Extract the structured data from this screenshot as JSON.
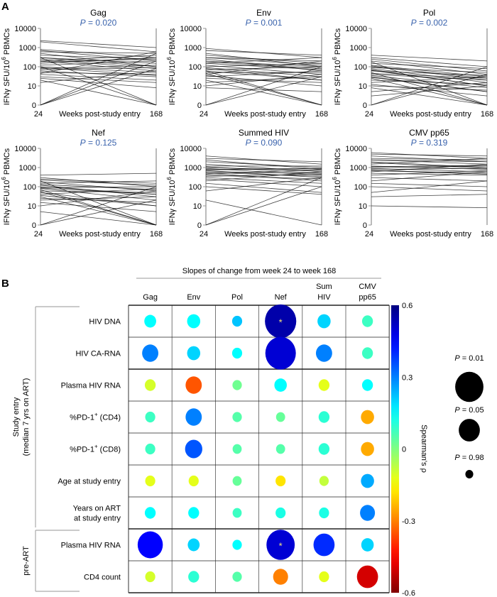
{
  "panel_a": {
    "label": "A"
  },
  "panel_b": {
    "label": "B"
  },
  "chart_data": [
    {
      "type": "line",
      "panel": "A",
      "xlabel": "Weeks post-study entry",
      "x_ticks": [
        "24",
        "168"
      ],
      "ylabel": {
        "prefix": "IFNγ SFU/10",
        "sup": "6",
        "suffix": " PBMCs"
      },
      "y_ticks": [
        "10000",
        "1000",
        "100",
        "10",
        "0"
      ],
      "y_scale": "log (with 0)",
      "ylim": [
        0,
        10000
      ],
      "p_prefix": "P",
      "subplots": [
        {
          "title": "Gag",
          "p": "= 0.020",
          "week24": [
            2300,
            2000,
            800,
            700,
            600,
            500,
            400,
            300,
            300,
            250,
            200,
            200,
            150,
            120,
            100,
            100,
            80,
            70,
            60,
            50,
            45,
            40,
            30,
            25,
            20,
            15,
            0,
            0,
            0,
            300,
            180,
            90
          ],
          "week168": [
            1000,
            600,
            300,
            200,
            500,
            100,
            250,
            150,
            0,
            80,
            400,
            60,
            300,
            200,
            50,
            0,
            120,
            90,
            30,
            40,
            600,
            20,
            15,
            8,
            0,
            60,
            500,
            200,
            80,
            100,
            250,
            35
          ]
        },
        {
          "title": "Env",
          "p": "= 0.001",
          "week24": [
            900,
            700,
            500,
            400,
            300,
            250,
            200,
            180,
            150,
            120,
            100,
            90,
            80,
            70,
            60,
            50,
            40,
            35,
            30,
            25,
            20,
            15,
            10,
            8,
            0,
            0,
            300,
            150,
            60,
            45
          ],
          "week168": [
            300,
            400,
            100,
            150,
            200,
            60,
            100,
            80,
            300,
            40,
            150,
            30,
            20,
            100,
            0,
            50,
            200,
            10,
            60,
            15,
            0,
            30,
            40,
            5,
            100,
            30,
            120,
            70,
            20,
            0
          ]
        },
        {
          "title": "Pol",
          "p": "= 0.002",
          "week24": [
            400,
            300,
            250,
            200,
            150,
            120,
            100,
            90,
            80,
            70,
            60,
            50,
            40,
            35,
            30,
            25,
            20,
            15,
            12,
            10,
            8,
            5,
            3,
            0,
            0,
            180,
            110,
            65,
            45,
            28
          ],
          "week168": [
            200,
            100,
            60,
            40,
            80,
            30,
            25,
            50,
            15,
            10,
            35,
            0,
            20,
            8,
            5,
            0,
            12,
            30,
            3,
            6,
            0,
            15,
            10,
            40,
            100,
            0,
            20,
            10,
            25,
            5
          ]
        },
        {
          "title": "Nef",
          "p": "= 0.125",
          "week24": [
            400,
            300,
            250,
            200,
            180,
            150,
            120,
            100,
            90,
            80,
            70,
            60,
            50,
            40,
            30,
            25,
            20,
            15,
            10,
            0,
            0,
            5,
            220,
            130,
            85,
            55,
            35
          ],
          "week168": [
            500,
            100,
            150,
            0,
            60,
            200,
            30,
            40,
            100,
            20,
            0,
            50,
            10,
            80,
            0,
            15,
            30,
            5,
            60,
            100,
            20,
            0,
            120,
            70,
            40,
            0,
            10
          ]
        },
        {
          "title": "Summed HIV",
          "p": "= 0.090",
          "week24": [
            4000,
            3000,
            2500,
            2000,
            1500,
            1200,
            1000,
            900,
            800,
            700,
            600,
            500,
            450,
            400,
            300,
            250,
            200,
            150,
            100,
            60,
            20,
            0,
            0,
            1100,
            750,
            550,
            350
          ],
          "week168": [
            1500,
            2000,
            800,
            1000,
            600,
            1200,
            700,
            400,
            900,
            300,
            500,
            200,
            800,
            250,
            150,
            100,
            600,
            50,
            40,
            300,
            0,
            300,
            100,
            500,
            900,
            350,
            450
          ]
        },
        {
          "title": "CMV pp65",
          "p": "= 0.319",
          "week24": [
            6000,
            5000,
            4000,
            3000,
            2500,
            2000,
            1500,
            1200,
            1000,
            900,
            800,
            700,
            600,
            500,
            400,
            300,
            200,
            150,
            100,
            50,
            30,
            10,
            2500,
            1800,
            1100,
            700
          ],
          "week168": [
            3000,
            4000,
            2000,
            2500,
            1500,
            1000,
            3000,
            800,
            1200,
            600,
            900,
            500,
            1500,
            400,
            700,
            200,
            600,
            100,
            60,
            200,
            40,
            8,
            2000,
            900,
            1300,
            450
          ]
        }
      ],
      "line_color": "#000000",
      "p_color": "#3a63ad"
    },
    {
      "type": "heatmap",
      "panel": "B",
      "title": "Slopes of change from week 24 to week 168",
      "columns": [
        [
          "Gag"
        ],
        [
          "Env"
        ],
        [
          "Pol"
        ],
        [
          "Nef"
        ],
        [
          "Sum",
          "HIV"
        ],
        [
          "CMV",
          "pp65"
        ]
      ],
      "groups": [
        {
          "label_lines": [
            "Study entry",
            "(median 7 yrs on ART)"
          ],
          "rows": [
            0,
            1,
            2,
            3,
            4,
            5,
            6
          ]
        },
        {
          "label_lines": [
            "pre-ART"
          ],
          "rows": [
            7,
            8
          ]
        }
      ],
      "rows": [
        {
          "label": "HIV DNA",
          "rho": [
            0.15,
            0.15,
            0.22,
            0.55,
            0.2,
            0.08
          ],
          "p": [
            0.4,
            0.3,
            0.6,
            0.005,
            0.3,
            0.5
          ],
          "star": [
            false,
            false,
            false,
            true,
            false,
            false
          ]
        },
        {
          "label": "HIV CA-RNA",
          "rho": [
            0.3,
            0.2,
            0.15,
            0.5,
            0.3,
            0.08
          ],
          "p": [
            0.15,
            0.3,
            0.6,
            0.006,
            0.15,
            0.5
          ],
          "star": [
            false,
            false,
            false,
            false,
            false,
            false
          ]
        },
        {
          "label": "Plasma HIV RNA",
          "rho": [
            -0.1,
            -0.35,
            0.02,
            0.15,
            -0.12,
            0.15
          ],
          "p": [
            0.5,
            0.15,
            0.7,
            0.35,
            0.5,
            0.5
          ],
          "star": [
            false,
            false,
            false,
            false,
            false,
            false
          ]
        },
        {
          "label": "%PD-1",
          "sup": "+",
          "suffix": " (CD4)",
          "rho": [
            0.08,
            0.3,
            0.05,
            0.03,
            0.1,
            -0.25
          ],
          "p": [
            0.6,
            0.15,
            0.7,
            0.75,
            0.5,
            0.3
          ],
          "star": [
            false,
            false,
            false,
            false,
            false,
            false
          ]
        },
        {
          "label": "%PD-1",
          "sup": "+",
          "suffix": " (CD8)",
          "rho": [
            0.08,
            0.35,
            0.05,
            0.05,
            0.1,
            -0.25
          ],
          "p": [
            0.6,
            0.12,
            0.75,
            0.75,
            0.5,
            0.3
          ],
          "star": [
            false,
            false,
            false,
            false,
            false,
            false
          ]
        },
        {
          "label": "Age at study entry",
          "rho": [
            -0.12,
            -0.12,
            0.03,
            -0.18,
            -0.08,
            0.25
          ],
          "p": [
            0.6,
            0.6,
            0.75,
            0.6,
            0.7,
            0.3
          ],
          "star": [
            false,
            false,
            false,
            false,
            false,
            false
          ]
        },
        {
          "label": "Years on ART",
          "label2": "at study entry",
          "rho": [
            0.15,
            0.15,
            0.08,
            0.12,
            0.12,
            0.3
          ],
          "p": [
            0.5,
            0.5,
            0.75,
            0.6,
            0.6,
            0.2
          ],
          "star": [
            false,
            false,
            false,
            false,
            false,
            false
          ]
        },
        {
          "label": "Plasma HIV RNA",
          "rho": [
            0.45,
            0.2,
            0.15,
            0.5,
            0.4,
            0.2
          ],
          "p": [
            0.02,
            0.4,
            0.7,
            0.01,
            0.05,
            0.35
          ],
          "star": [
            false,
            false,
            false,
            true,
            false,
            false
          ]
        },
        {
          "label": "CD4 count",
          "rho": [
            -0.1,
            0.1,
            0.05,
            -0.3,
            -0.12,
            -0.5
          ],
          "p": [
            0.6,
            0.5,
            0.7,
            0.2,
            0.6,
            0.05
          ],
          "star": [
            false,
            false,
            false,
            false,
            false,
            false
          ]
        }
      ],
      "star_symbol": "*",
      "star_color": "#f2e27a",
      "colorbar": {
        "label": "Spearman's ρ",
        "range": [
          -0.6,
          0.6
        ],
        "ticks": [
          "0.6",
          "0.3",
          "0",
          "-0.3",
          "-0.6"
        ],
        "colormap": "jet (reversed)"
      },
      "size_legend": [
        {
          "p_prefix": "P",
          "p": "= 0.01",
          "value": 0.01
        },
        {
          "p_prefix": "P",
          "p": "= 0.05",
          "value": 0.05
        },
        {
          "p_prefix": "P",
          "p": "= 0.98",
          "value": 0.98
        }
      ]
    }
  ]
}
